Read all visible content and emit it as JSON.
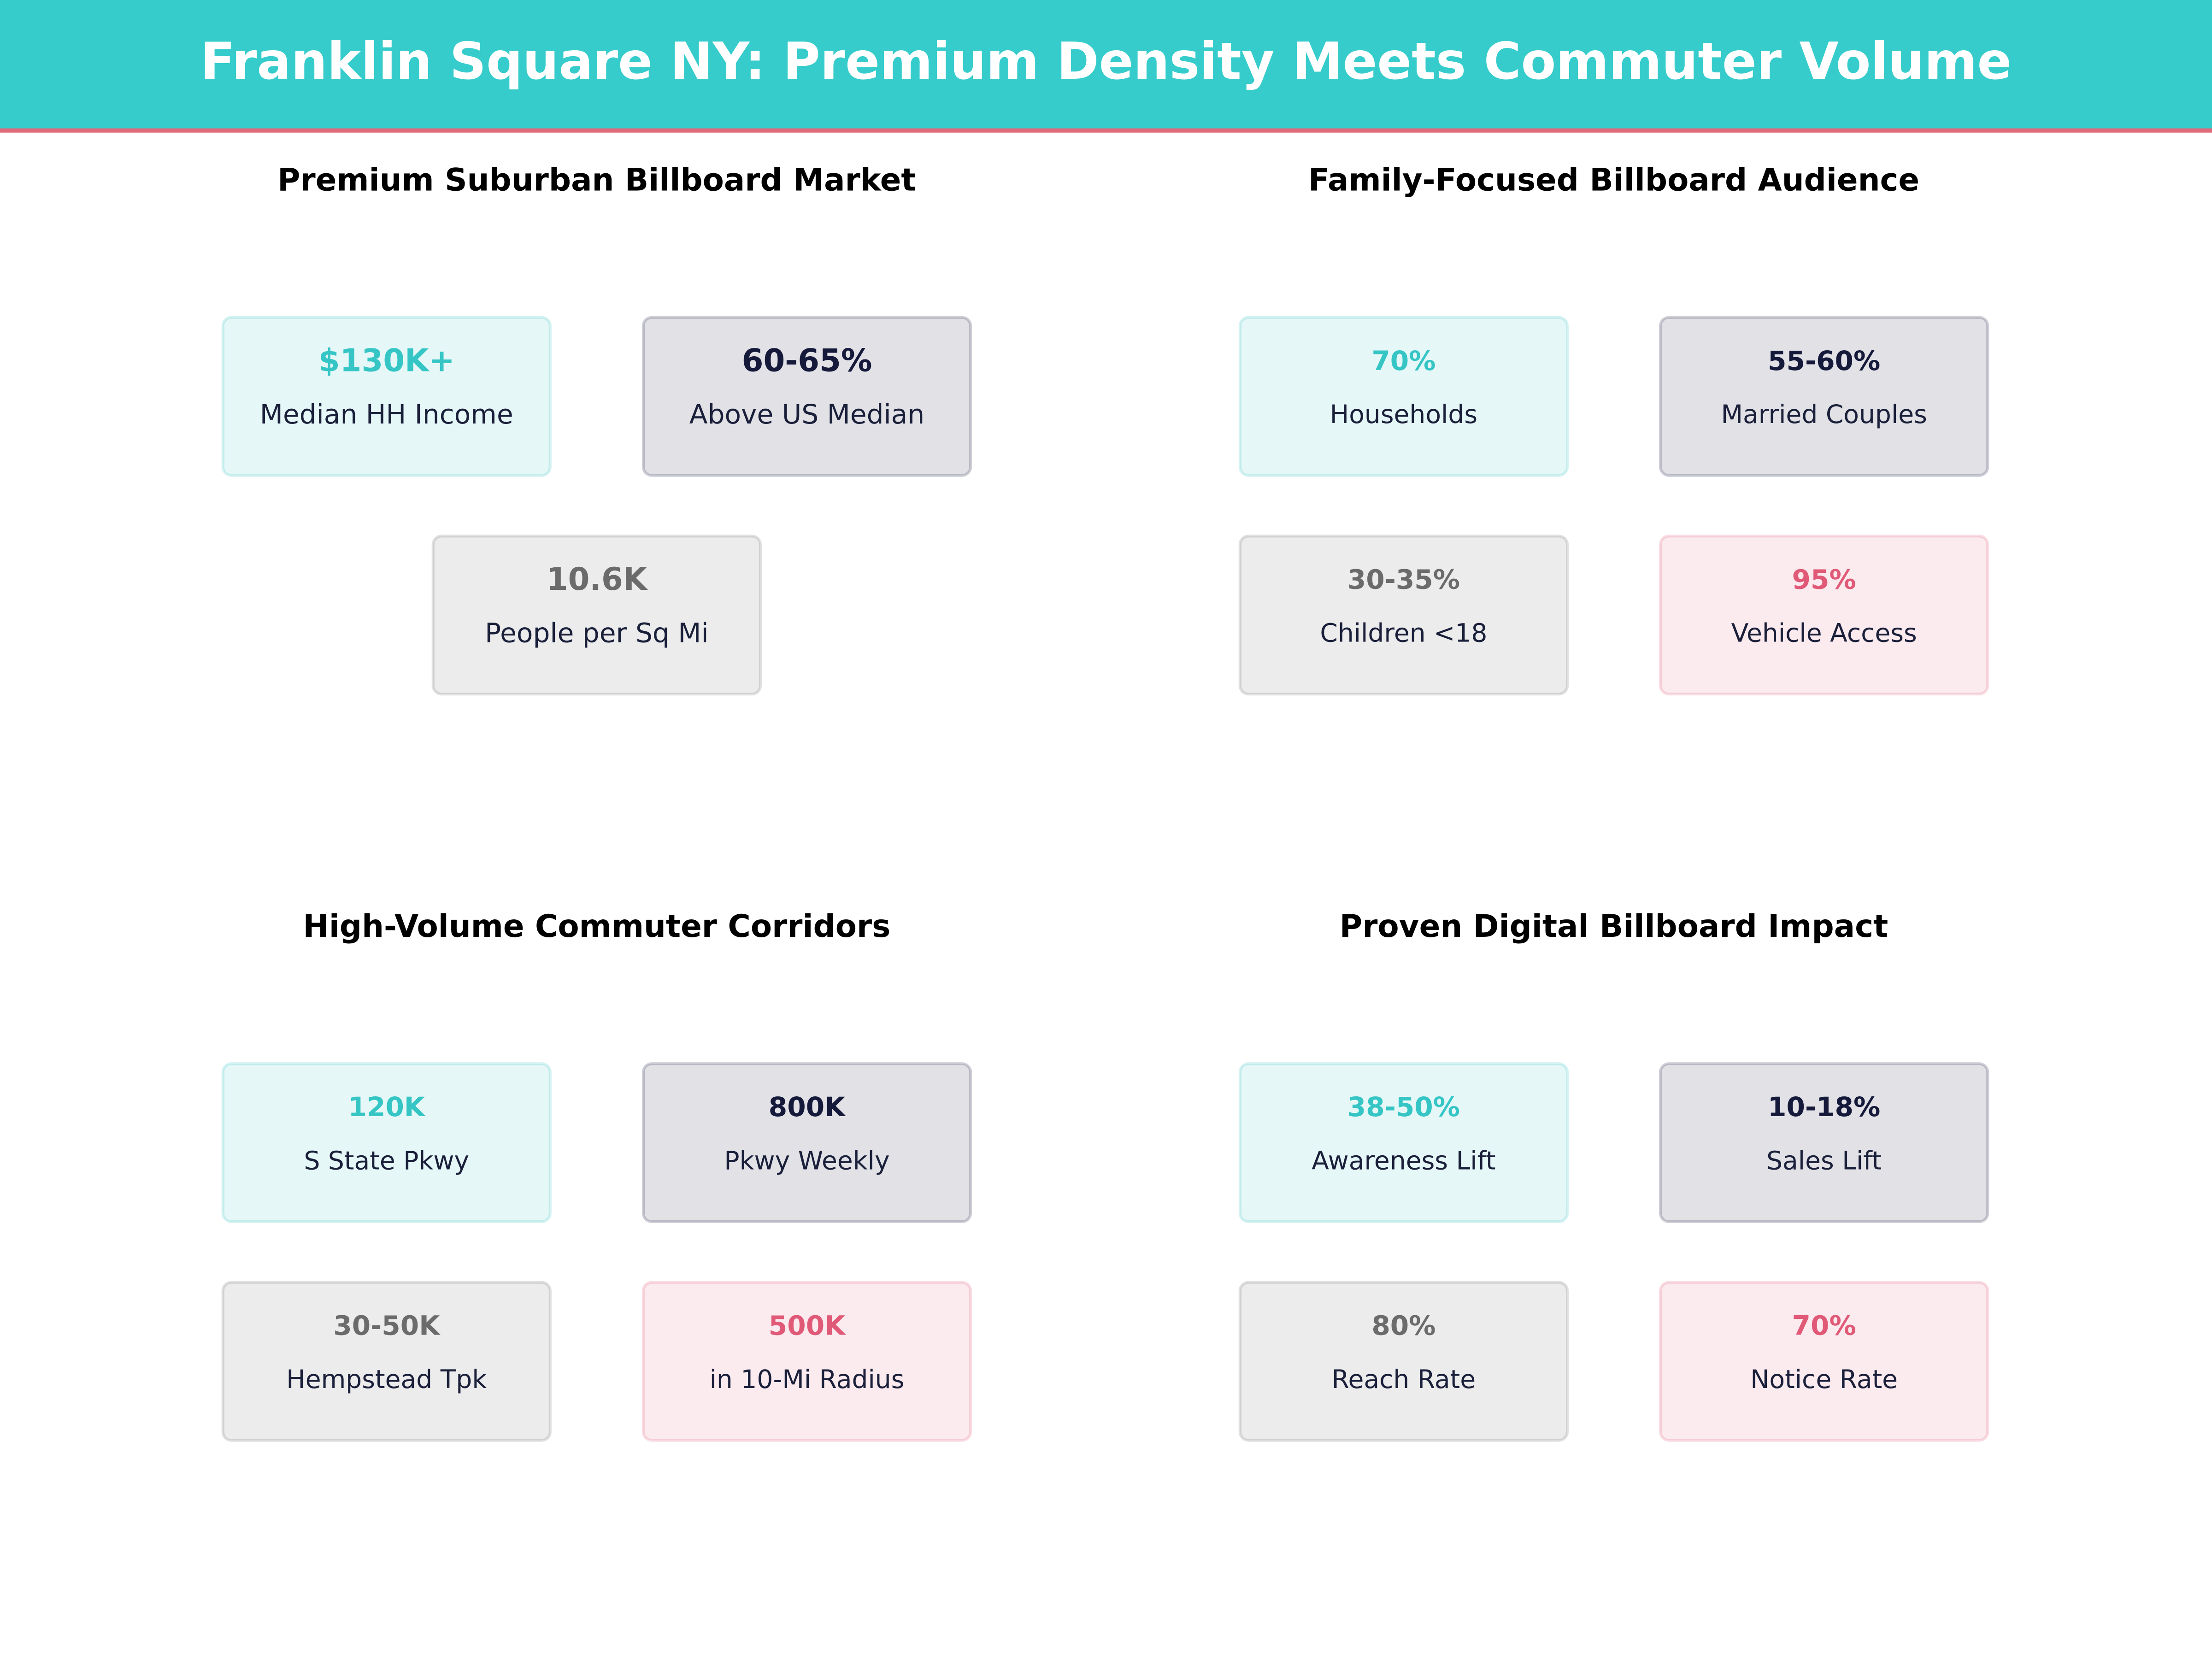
{
  "header": {
    "title": "Franklin Square NY: Premium Density Meets Commuter Volume"
  },
  "panels": [
    {
      "title": "Premium Suburban Billboard Market",
      "cards": [
        {
          "value": "$130K+",
          "label": "Median HH Income",
          "color": "#36c5c5"
        },
        {
          "value": "60-65%",
          "label": "Above US Median",
          "color": "#15193a"
        },
        {
          "value": "10.6K",
          "label": "People per Sq Mi",
          "color": "#6b6b6b"
        }
      ]
    },
    {
      "title": "Family-Focused Billboard Audience",
      "cards": [
        {
          "value": "70%",
          "label": "Households",
          "color": "#36c5c5"
        },
        {
          "value": "55-60%",
          "label": "Married Couples",
          "color": "#15193a"
        },
        {
          "value": "30-35%",
          "label": "Children <18",
          "color": "#6b6b6b"
        },
        {
          "value": "95%",
          "label": "Vehicle Access",
          "color": "#e05a78"
        }
      ]
    },
    {
      "title": "High-Volume Commuter Corridors",
      "cards": [
        {
          "value": "120K",
          "label": "S State Pkwy",
          "color": "#36c5c5"
        },
        {
          "value": "800K",
          "label": "Pkwy Weekly",
          "color": "#15193a"
        },
        {
          "value": "30-50K",
          "label": "Hempstead Tpk",
          "color": "#6b6b6b"
        },
        {
          "value": "500K",
          "label": "in 10-Mi Radius",
          "color": "#e05a78"
        }
      ]
    },
    {
      "title": "Proven Digital Billboard Impact",
      "cards": [
        {
          "value": "38-50%",
          "label": "Awareness Lift",
          "color": "#36c5c5"
        },
        {
          "value": "10-18%",
          "label": "Sales Lift",
          "color": "#15193a"
        },
        {
          "value": "80%",
          "label": "Reach Rate",
          "color": "#6b6b6b"
        },
        {
          "value": "70%",
          "label": "Notice Rate",
          "color": "#e05a78"
        }
      ]
    }
  ]
}
